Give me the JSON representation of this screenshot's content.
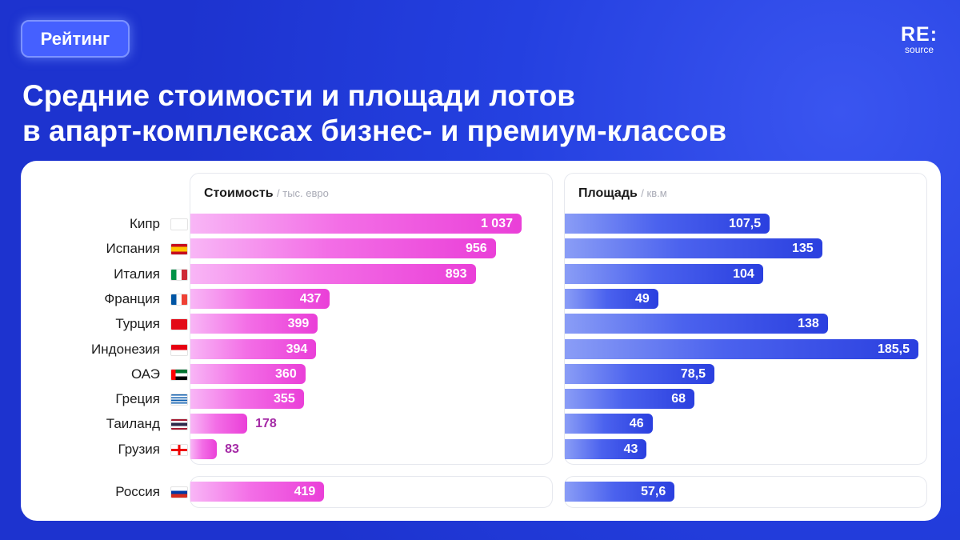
{
  "tag": "Рейтинг",
  "logo": {
    "line1": "RE:",
    "line2": "source"
  },
  "title": {
    "line1": "Средние стоимости и площади лотов",
    "line2": "в апарт-комплексах бизнес- и премиум-классов"
  },
  "colors": {
    "background": "#1f37d8",
    "cost_bar": "#ea3fd8",
    "area_bar": "#2a3fdf",
    "cost_label_outside": "#a52aa6"
  },
  "chart_data": [
    {
      "type": "bar",
      "orientation": "horizontal",
      "title": "Стоимость",
      "unit": "тыс. евро",
      "categories": [
        "Кипр",
        "Испания",
        "Италия",
        "Франция",
        "Турция",
        "Индонезия",
        "ОАЭ",
        "Греция",
        "Таиланд",
        "Грузия",
        "Россия"
      ],
      "values": [
        1037,
        956,
        893,
        437,
        399,
        394,
        360,
        355,
        178,
        83,
        419
      ],
      "value_labels": [
        "1 037",
        "956",
        "893",
        "437",
        "399",
        "394",
        "360",
        "355",
        "178",
        "83",
        "419"
      ]
    },
    {
      "type": "bar",
      "orientation": "horizontal",
      "title": "Площадь",
      "unit": "кв.м",
      "categories": [
        "Кипр",
        "Испания",
        "Италия",
        "Франция",
        "Турция",
        "Индонезия",
        "ОАЭ",
        "Греция",
        "Таиланд",
        "Грузия",
        "Россия"
      ],
      "values": [
        107.5,
        135,
        104,
        49,
        138,
        185.5,
        78.5,
        68,
        46,
        43,
        57.6
      ],
      "value_labels": [
        "107,5",
        "135",
        "104",
        "49",
        "138",
        "185,5",
        "78,5",
        "68",
        "46",
        "43",
        "57,6"
      ]
    }
  ],
  "flags": [
    "cyprus-flag-icon",
    "spain-flag-icon",
    "italy-flag-icon",
    "france-flag-icon",
    "turkey-flag-icon",
    "indonesia-flag-icon",
    "uae-flag-icon",
    "greece-flag-icon",
    "thailand-flag-icon",
    "georgia-flag-icon",
    "russia-flag-icon"
  ]
}
